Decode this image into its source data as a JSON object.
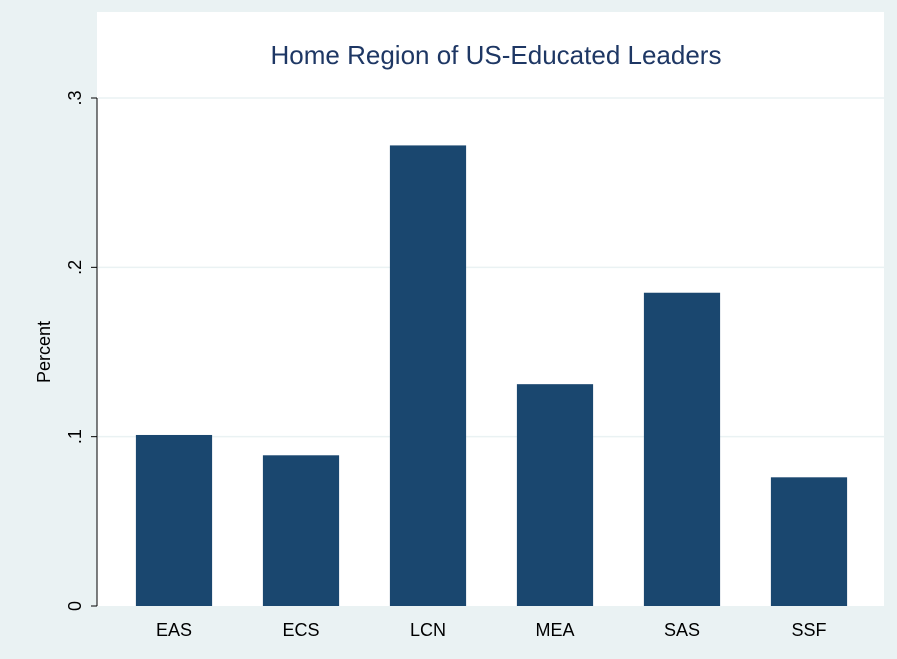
{
  "chart_data": {
    "type": "bar",
    "title": "Home Region of US-Educated Leaders",
    "y_label": "Percent",
    "categories": [
      "EAS",
      "ECS",
      "LCN",
      "MEA",
      "SAS",
      "SSF"
    ],
    "values": [
      0.101,
      0.089,
      0.272,
      0.131,
      0.185,
      0.076
    ],
    "color": "#1a476f",
    "ylim": [
      0,
      0.3
    ],
    "yticks": [
      0,
      {
        "value": 0.1,
        "label": ".1"
      },
      {
        "value": 0.2,
        "label": ".2"
      },
      {
        "value": 0.3,
        "label": ".3"
      }
    ],
    "grid": true
  }
}
